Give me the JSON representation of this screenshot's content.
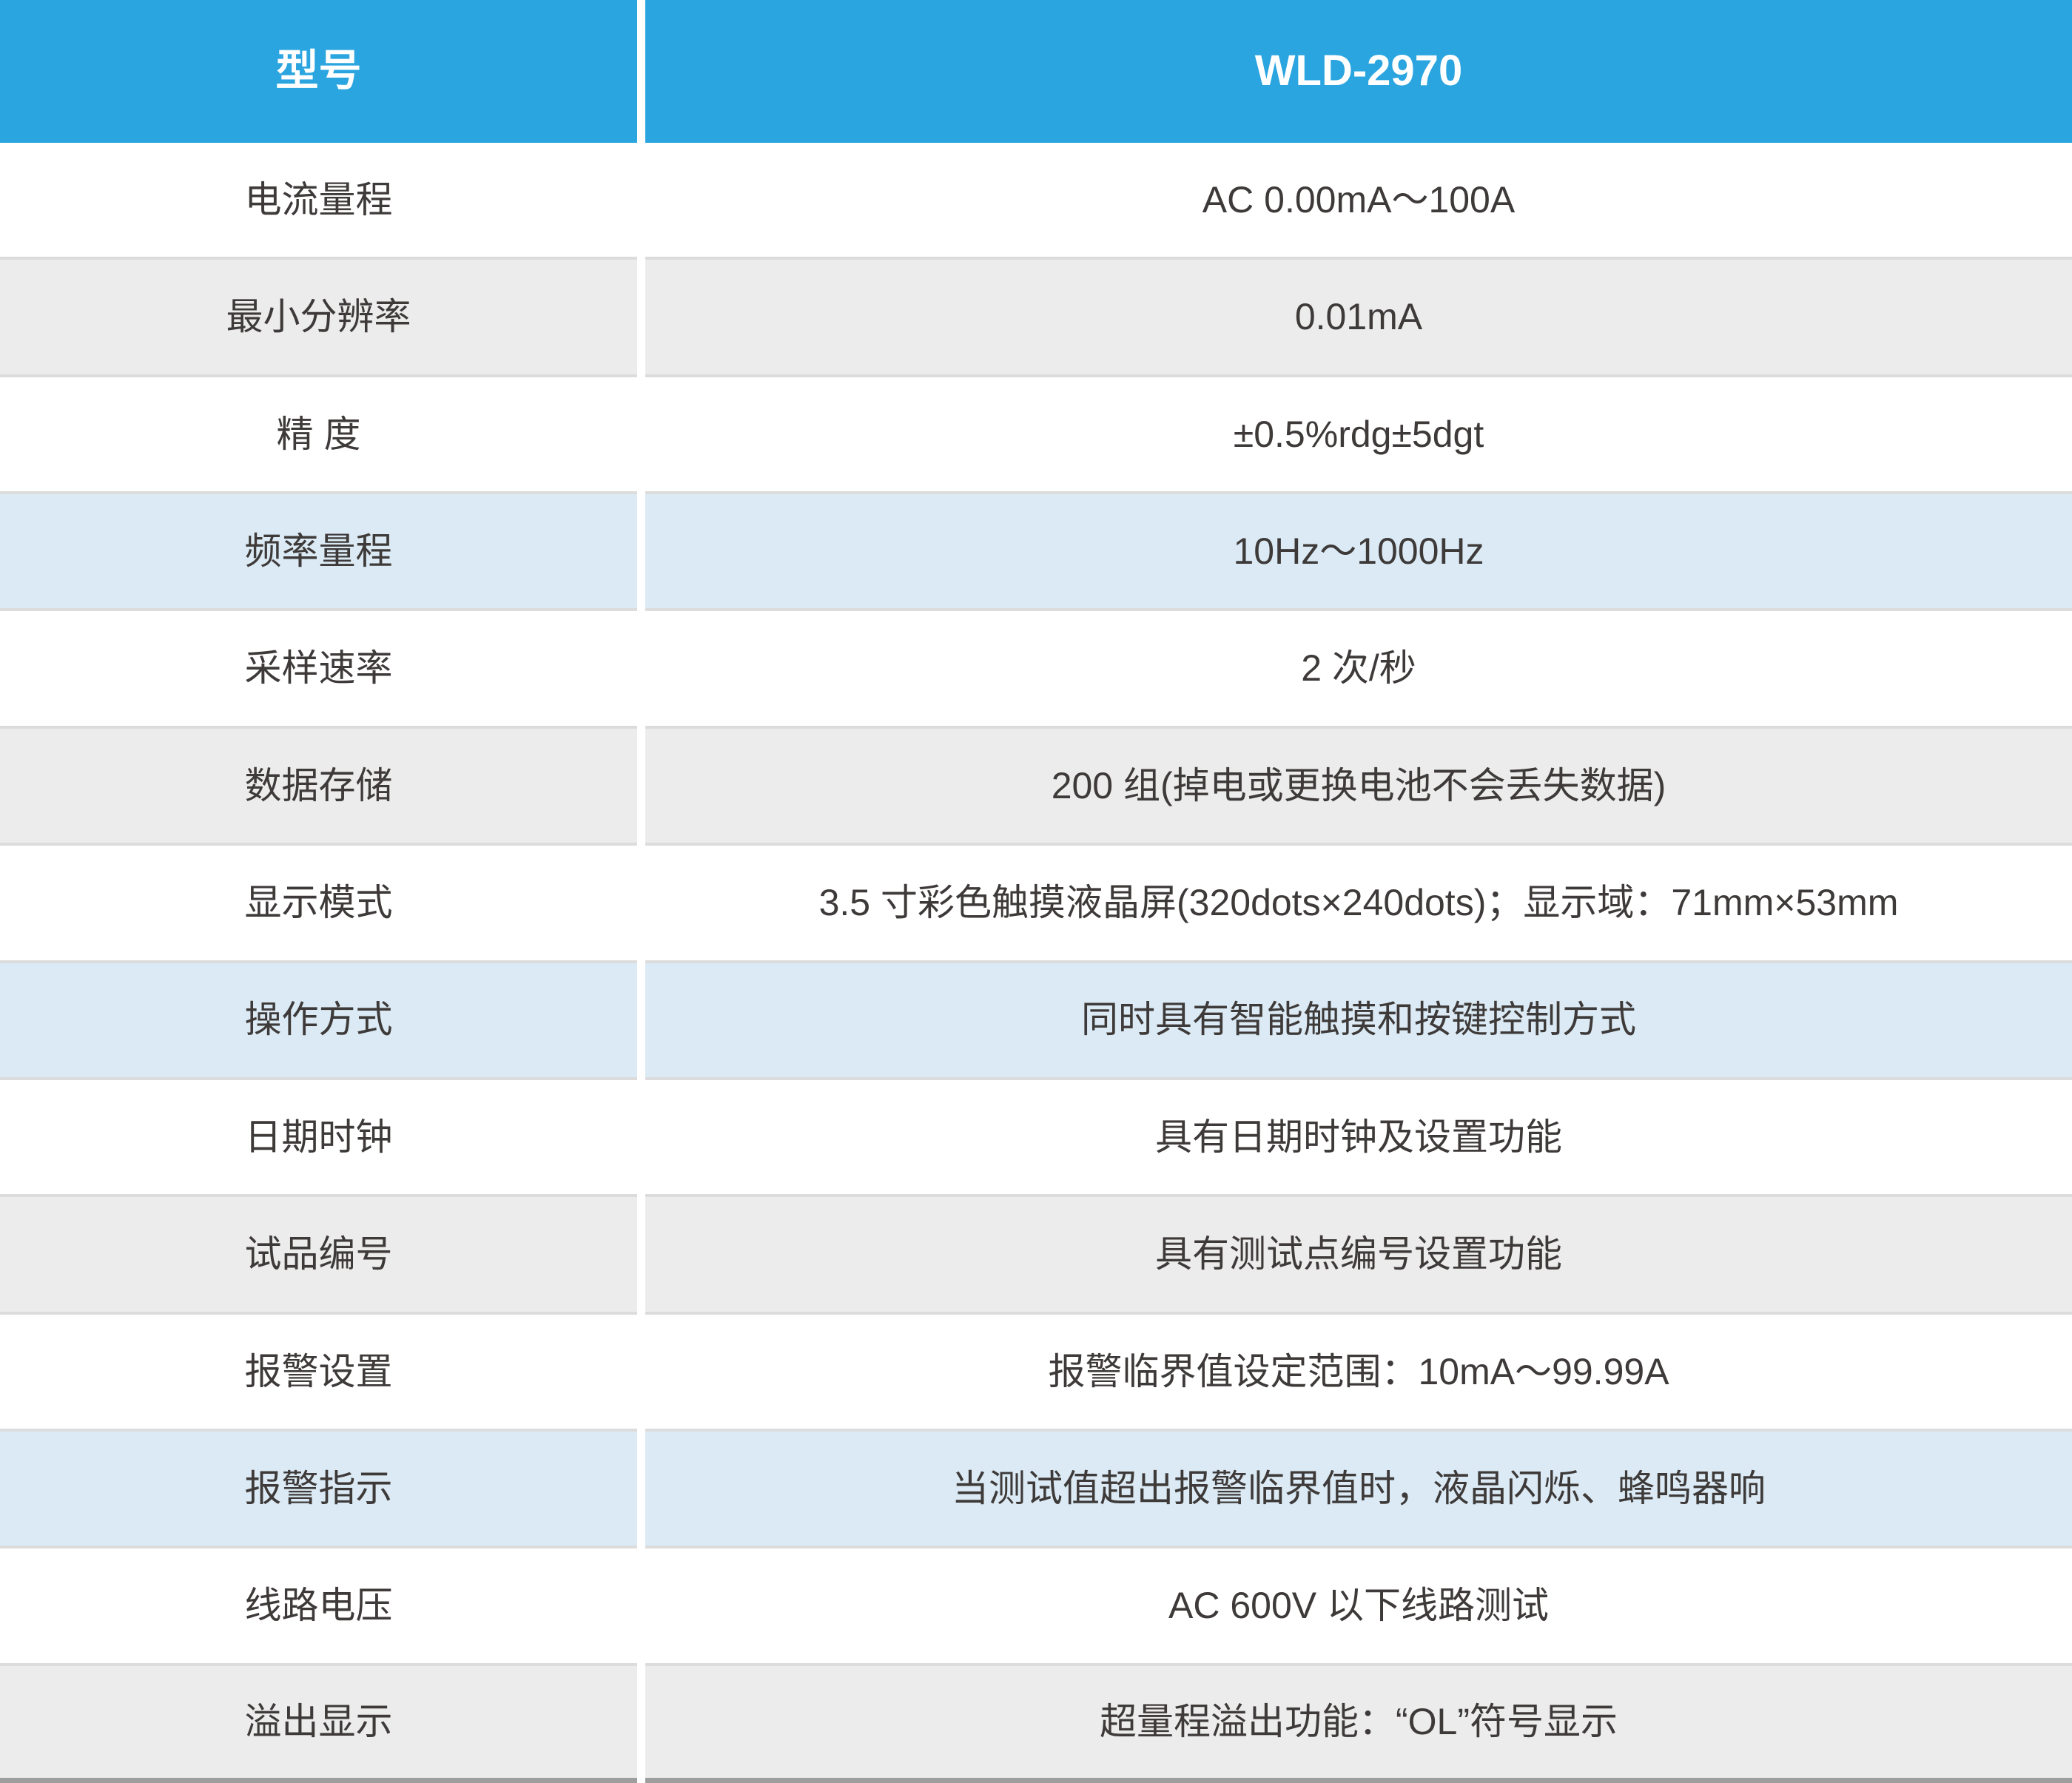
{
  "table": {
    "header": {
      "model_label": "型号",
      "model_value": "WLD-2970"
    },
    "rows": [
      {
        "label": "电流量程",
        "value": "AC 0.00mA～100A",
        "variant": "white"
      },
      {
        "label": "最小分辨率",
        "value": "0.01mA",
        "variant": "gray"
      },
      {
        "label": "精 度",
        "value": "±0.5%rdg±5dgt",
        "variant": "white"
      },
      {
        "label": "频率量程",
        "value": "10Hz～1000Hz",
        "variant": "blue"
      },
      {
        "label": "采样速率",
        "value": "2 次/秒",
        "variant": "white"
      },
      {
        "label": "数据存储",
        "value": "200 组(掉电或更换电池不会丢失数据)",
        "variant": "gray"
      },
      {
        "label": "显示模式",
        "value": "3.5 寸彩色触摸液晶屏(320dots×240dots)；显示域：71mm×53mm",
        "variant": "white"
      },
      {
        "label": "操作方式",
        "value": "同时具有智能触摸和按键控制方式",
        "variant": "blue"
      },
      {
        "label": "日期时钟",
        "value": "具有日期时钟及设置功能",
        "variant": "white"
      },
      {
        "label": "试品编号",
        "value": "具有测试点编号设置功能",
        "variant": "gray"
      },
      {
        "label": "报警设置",
        "value": "报警临界值设定范围：10mA～99.99A",
        "variant": "white"
      },
      {
        "label": "报警指示",
        "value": "当测试值超出报警临界值时，液晶闪烁、蜂鸣器响",
        "variant": "blue"
      },
      {
        "label": "线路电压",
        "value": "AC 600V 以下线路测试",
        "variant": "white"
      },
      {
        "label": "溢出显示",
        "value": "超量程溢出功能：“OL”符号显示",
        "variant": "gray"
      }
    ],
    "colors": {
      "header_bg": "#2aa5df",
      "header_text": "#ffffff",
      "row_white": "#ffffff",
      "row_gray": "#ececec",
      "row_blue": "#dbeaf4",
      "border": "#dcdcdc",
      "bottom_bar": "#9e9e9e",
      "text": "#3e3a39"
    }
  }
}
